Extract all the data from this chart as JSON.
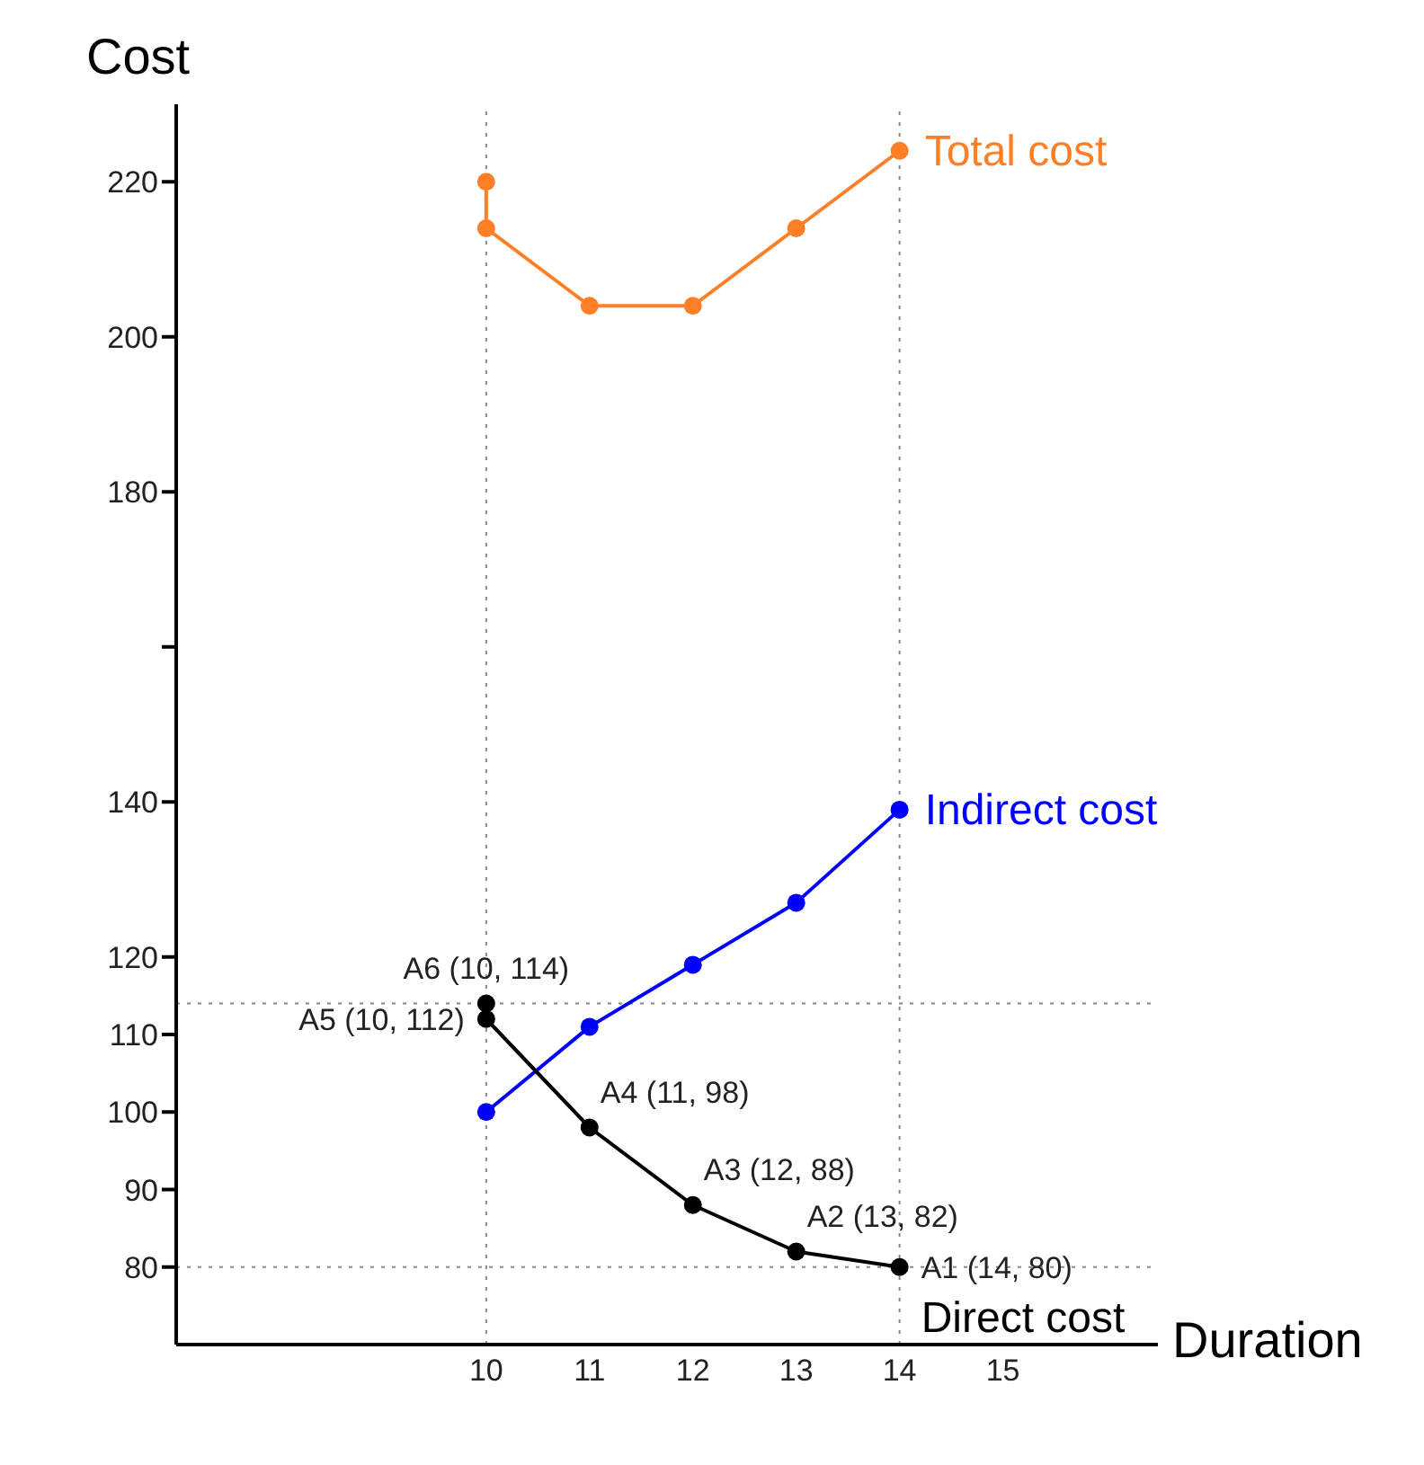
{
  "chart_data": {
    "type": "line",
    "xlabel": "Duration",
    "ylabel": "Cost",
    "xlim": [
      7,
      16.5
    ],
    "xticks": [
      10,
      11,
      12,
      13,
      14,
      15
    ],
    "ylim": [
      70,
      230
    ],
    "yticks": [
      80,
      90,
      100,
      110,
      120,
      140,
      {
        "value": 160,
        "label": null
      },
      180,
      200,
      220
    ],
    "series": [
      {
        "name": "Total cost",
        "color": "#ff7f27",
        "x": [
          10,
          10,
          11,
          12,
          13,
          14
        ],
        "values": [
          220,
          214,
          204,
          204,
          214,
          224
        ]
      },
      {
        "name": "Indirect cost",
        "color": "#0000ff",
        "x": [
          10,
          11,
          12,
          13,
          14
        ],
        "values": [
          100,
          111,
          119,
          127,
          139
        ]
      },
      {
        "name": "Direct cost",
        "color": "#000000",
        "x": [
          10,
          10,
          11,
          12,
          13,
          14
        ],
        "values": [
          114,
          112,
          98,
          88,
          82,
          80
        ],
        "value_labels": [
          "A6 (10, 114)",
          "A5 (10, 112)",
          "A4 (11, 98)",
          "A3 (12, 88)",
          "A2 (13, 82)",
          "A1 (14, 80)"
        ]
      }
    ],
    "ref_lines": [
      {
        "axis": "x",
        "value": 10,
        "line_style": "dotted",
        "color": "#888888"
      },
      {
        "axis": "x",
        "value": 14,
        "line_style": "dotted",
        "color": "#888888"
      },
      {
        "axis": "y",
        "value": 114,
        "line_style": "dotted",
        "color": "#888888"
      },
      {
        "axis": "y",
        "value": 80,
        "line_style": "dotted",
        "color": "#888888"
      }
    ],
    "grid": false,
    "legend": false,
    "marker": "circle",
    "line_style": "solid"
  }
}
